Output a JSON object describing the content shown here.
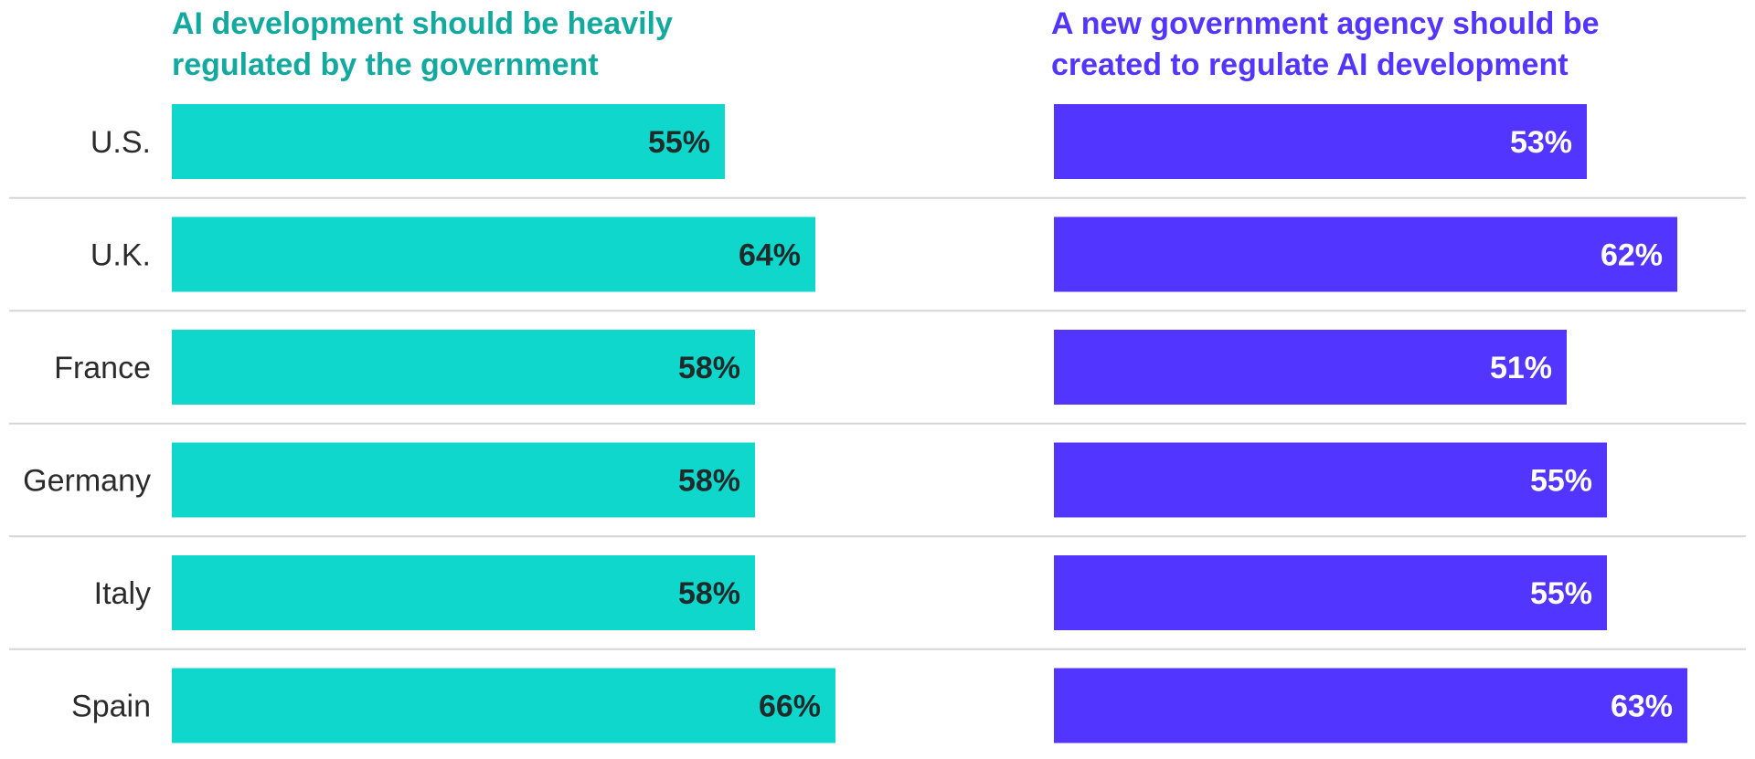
{
  "chart_data": {
    "type": "bar",
    "orientation": "horizontal",
    "categories": [
      "U.S.",
      "U.K.",
      "France",
      "Germany",
      "Italy",
      "Spain"
    ],
    "series": [
      {
        "name": "AI development should be heavily regulated by the government",
        "values": [
          55,
          64,
          58,
          58,
          58,
          66
        ],
        "labels": [
          "55%",
          "64%",
          "58%",
          "58%",
          "58%",
          "66%"
        ],
        "color": "#10d7cc",
        "label_color": "#1f2a2a",
        "title_color": "#14a99e"
      },
      {
        "name": "A new government agency should be created to regulate AI development",
        "values": [
          53,
          62,
          51,
          55,
          55,
          63
        ],
        "labels": [
          "53%",
          "62%",
          "51%",
          "55%",
          "55%",
          "63%"
        ],
        "color": "#5236ff",
        "label_color": "#ffffff",
        "title_color": "#5236ff"
      }
    ],
    "unit": "%",
    "xlim": [
      0,
      100
    ],
    "grid": false,
    "row_dividers": true,
    "divider_color": "#d5d5d5"
  }
}
